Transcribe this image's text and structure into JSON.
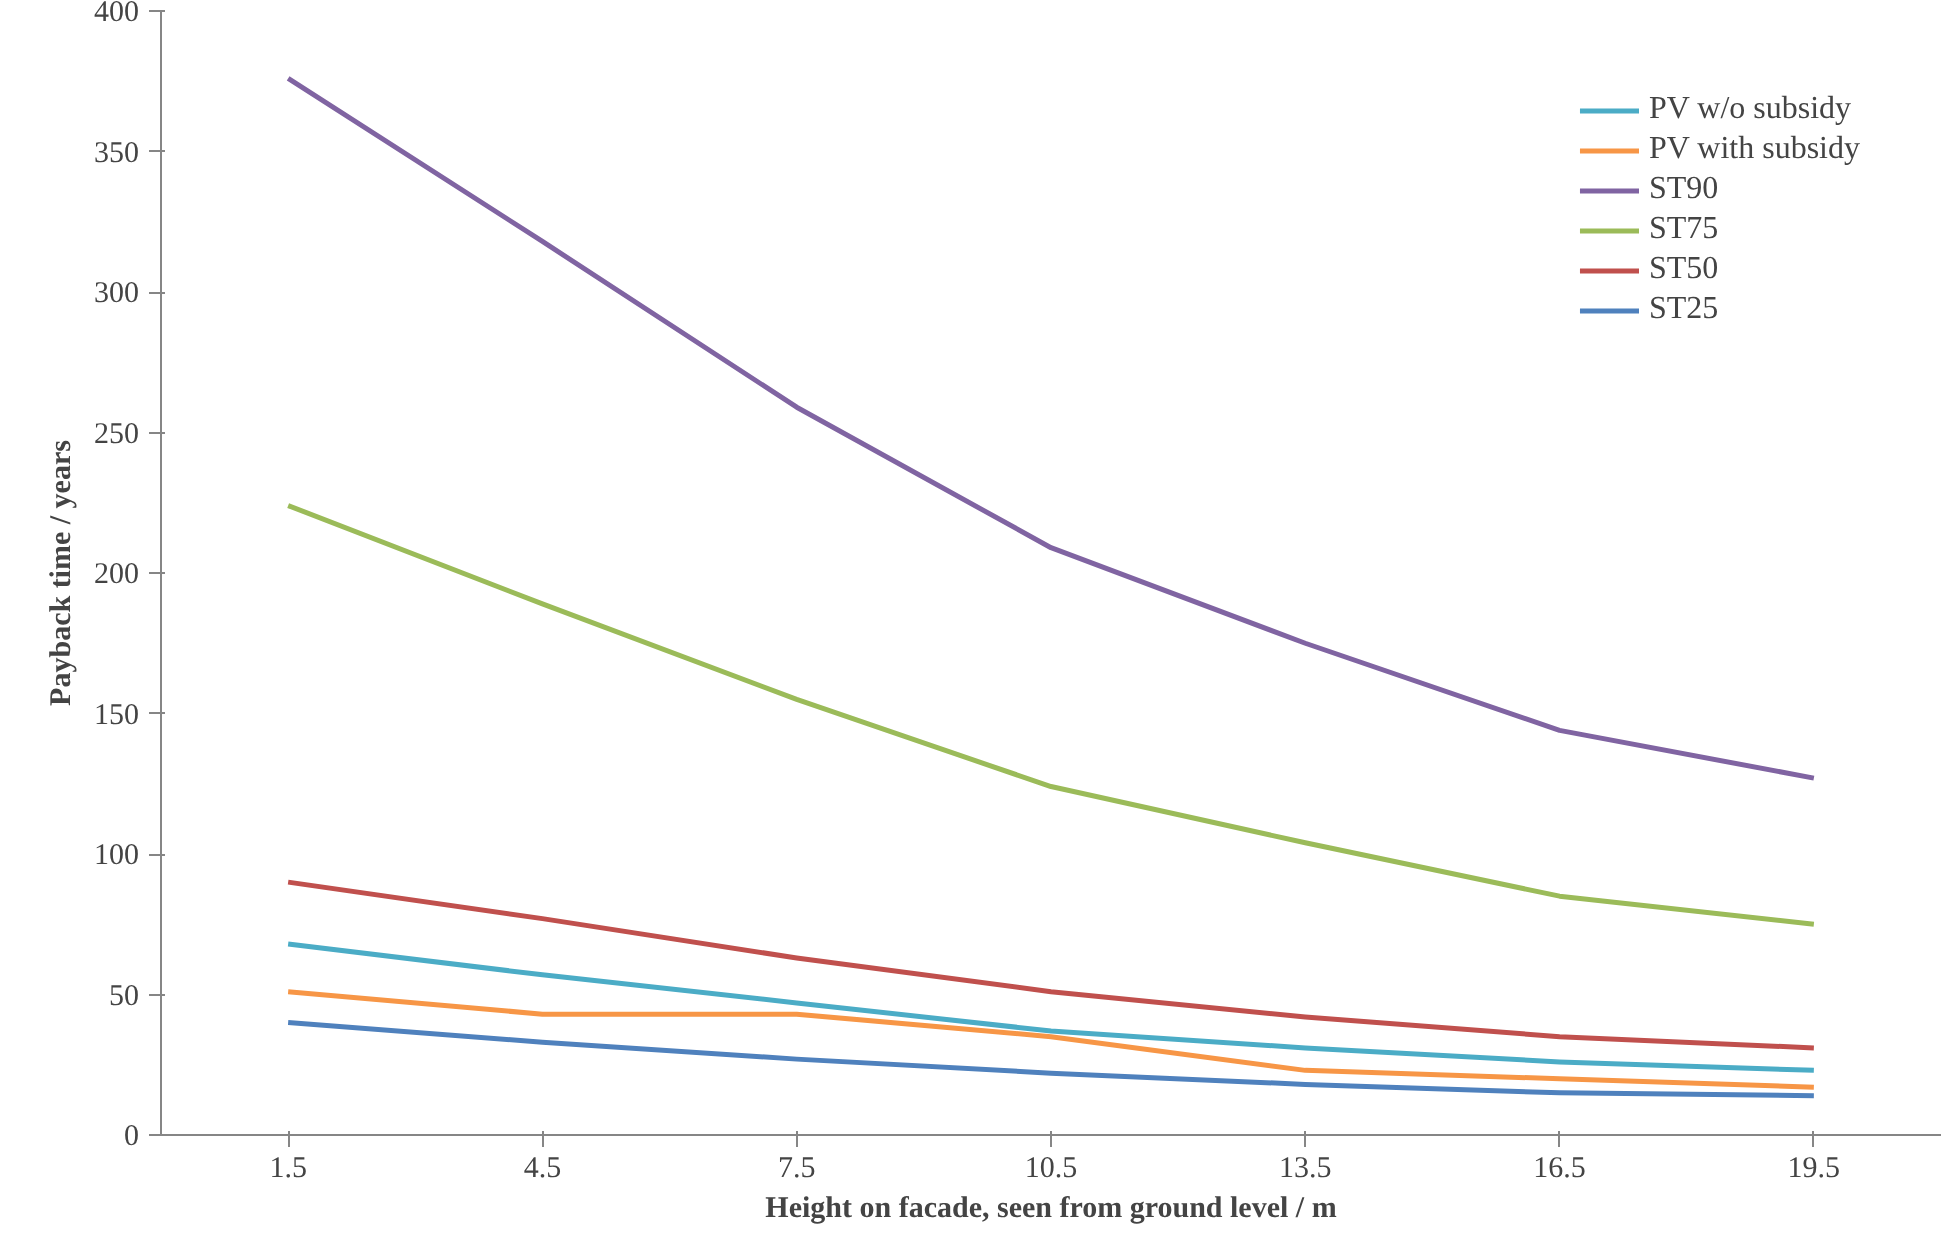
{
  "chart_data": {
    "type": "line",
    "xlabel": "Height on facade, seen from ground level / m",
    "ylabel": "Payback time / years",
    "categories": [
      "1.5",
      "4.5",
      "7.5",
      "10.5",
      "13.5",
      "16.5",
      "19.5"
    ],
    "series": [
      {
        "name": "PV w/o subsidy",
        "color": "#4bacc6",
        "values": [
          68,
          57,
          47,
          37,
          31,
          26,
          23
        ]
      },
      {
        "name": "PV with subsidy",
        "color": "#f79646",
        "values": [
          51,
          43,
          43,
          35,
          23,
          20,
          17
        ]
      },
      {
        "name": "ST90",
        "color": "#8064a2",
        "values": [
          376,
          318,
          259,
          209,
          175,
          144,
          127
        ]
      },
      {
        "name": "ST75",
        "color": "#9bbb59",
        "values": [
          224,
          189,
          155,
          124,
          104,
          85,
          75
        ]
      },
      {
        "name": "ST50",
        "color": "#c0504d",
        "values": [
          90,
          77,
          63,
          51,
          42,
          35,
          31
        ]
      },
      {
        "name": "ST25",
        "color": "#4f81bd",
        "values": [
          40,
          33,
          27,
          22,
          18,
          15,
          14
        ]
      }
    ],
    "ylim": [
      0,
      400
    ],
    "yticks": [
      0,
      50,
      100,
      150,
      200,
      250,
      300,
      350,
      400
    ],
    "grid": false,
    "legend": "top right",
    "marker": "none",
    "line_style": "solid"
  }
}
